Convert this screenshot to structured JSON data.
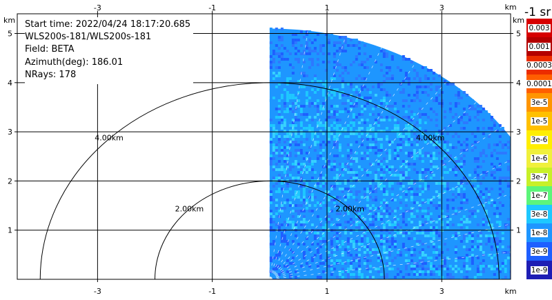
{
  "info": {
    "start_time": "Start time: 2022/04/24 18:17:20.685",
    "instrument": "WLS200s-181/WLS200s-181",
    "field": "Field: BETA",
    "azimuth": "Azimuth(deg): 186.01",
    "nrays": "NRays: 178"
  },
  "colorbar": {
    "unit": "-1 sr",
    "labels": [
      "0.003",
      "0.001",
      "0.0003",
      "0.0001",
      "3e-5",
      "1e-5",
      "3e-6",
      "1e-6",
      "3e-7",
      "1e-7",
      "3e-8",
      "1e-8",
      "3e-9",
      "1e-9"
    ],
    "colors": [
      "#d70000",
      "#b40000",
      "#ec2d00",
      "#ff5e00",
      "#ff9500",
      "#ffc000",
      "#ffee00",
      "#f0f03c",
      "#c8f028",
      "#5cf57a",
      "#1ec8ff",
      "#1e96ff",
      "#1e5fff",
      "#1e1eb4"
    ]
  },
  "chart_data": {
    "type": "ppi",
    "field": "BETA",
    "x_unit_label": "km",
    "y_unit_label": "km",
    "xlim": [
      -4.4,
      4.2
    ],
    "ylim": [
      0,
      5.4
    ],
    "x_ticks": [
      -3,
      -1,
      1,
      3
    ],
    "x_tick_labels": [
      "-3",
      "-1",
      "1",
      "3"
    ],
    "y_ticks": [
      1,
      2,
      3,
      4,
      5
    ],
    "y_tick_labels": [
      "1",
      "2",
      "3",
      "4",
      "5"
    ],
    "grid": true,
    "range_rings": [
      {
        "radius_km": 2,
        "label": "2.00km"
      },
      {
        "radius_km": 4,
        "label": "4.00km"
      }
    ],
    "sweep": {
      "radius_km": 5.1,
      "azimuth_start_deg": 0,
      "azimuth_end_deg": 90
    },
    "dominant_values": "mostly 3e-8 to 1e-7 sr-1 (blue / light blue)"
  }
}
